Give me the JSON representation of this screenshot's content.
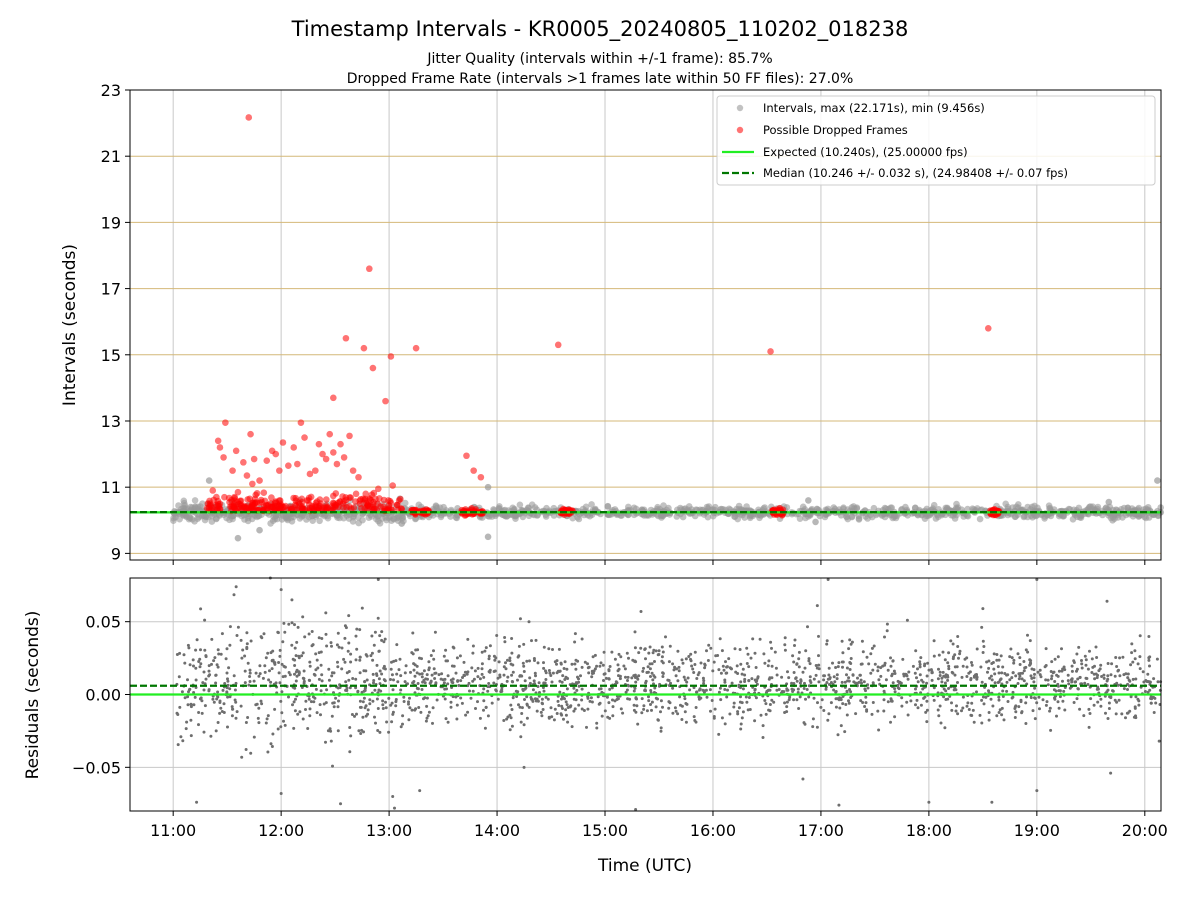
{
  "colors": {
    "intervals": "#999999",
    "dropped": "#ff0000",
    "expected": "#22ee22",
    "median": "#007700",
    "hgrid": "#d4b878",
    "vgrid": "#c8c8c8",
    "residual_points": "#6e6e6e"
  },
  "chart_data": [
    {
      "type": "scatter",
      "title": "Timestamp Intervals - KR0005_20240805_110202_018238",
      "subtitle_1": "Jitter Quality (intervals within +/-1 frame): 85.7%",
      "subtitle_2": "Dropped Frame Rate (intervals >1 frames late within 50 FF files): 27.0%",
      "ylabel": "Intervals (seconds)",
      "ylim": [
        8.8,
        23
      ],
      "yticks": [
        "9",
        "11",
        "13",
        "15",
        "17",
        "19",
        "21",
        "23"
      ],
      "ytick_values": [
        9,
        11,
        13,
        15,
        17,
        19,
        21,
        23
      ],
      "xlim": [
        "10:36",
        "20:09"
      ],
      "grid": "horizontal and vertical",
      "legend_position": "top-right",
      "legend": [
        "Intervals, max (22.171s), min (9.456s)",
        "Possible Dropped Frames",
        "Expected (10.240s), (25.00000 fps)",
        "Median (10.246 +/- 0.032 s), (24.98408 +/- 0.07 fps)"
      ],
      "expected": 10.24,
      "median": 10.246,
      "intervals_band": {
        "segments": [
          {
            "x_start": "11:00",
            "x_end": "13:10",
            "y_min": 9.8,
            "y_max": 10.6
          },
          {
            "x_start": "13:10",
            "x_end": "20:09",
            "y_min": 10.0,
            "y_max": 10.5
          }
        ]
      },
      "intervals_outliers": [
        {
          "x": "11:20",
          "y": 11.2
        },
        {
          "x": "11:36",
          "y": 9.46
        },
        {
          "x": "11:48",
          "y": 9.7
        },
        {
          "x": "13:06",
          "y": 10.65
        },
        {
          "x": "13:07",
          "y": 9.9
        },
        {
          "x": "13:55",
          "y": 11.0
        },
        {
          "x": "13:55",
          "y": 9.5
        },
        {
          "x": "16:53",
          "y": 10.6
        },
        {
          "x": "16:57",
          "y": 9.95
        },
        {
          "x": "19:40",
          "y": 10.55
        },
        {
          "x": "20:07",
          "y": 11.2
        }
      ],
      "dropped_clusters": [
        {
          "x_start": "13:12",
          "x_end": "13:22",
          "y": 10.25
        },
        {
          "x_start": "13:40",
          "x_end": "13:52",
          "y": 10.25
        },
        {
          "x_start": "14:35",
          "x_end": "14:42",
          "y": 10.25
        },
        {
          "x_start": "16:33",
          "x_end": "16:39",
          "y": 10.25
        },
        {
          "x_start": "18:34",
          "x_end": "18:39",
          "y": 10.25
        }
      ],
      "dropped_frames": [
        {
          "x": "11:42",
          "y": 22.17
        },
        {
          "x": "12:49",
          "y": 17.6
        },
        {
          "x": "12:36",
          "y": 15.5
        },
        {
          "x": "12:46",
          "y": 15.2
        },
        {
          "x": "13:01",
          "y": 14.95
        },
        {
          "x": "12:51",
          "y": 14.6
        },
        {
          "x": "12:58",
          "y": 13.6
        },
        {
          "x": "12:29",
          "y": 13.7
        },
        {
          "x": "13:15",
          "y": 15.2
        },
        {
          "x": "14:34",
          "y": 15.3
        },
        {
          "x": "16:32",
          "y": 15.1
        },
        {
          "x": "18:33",
          "y": 15.8
        },
        {
          "x": "13:43",
          "y": 11.95
        },
        {
          "x": "13:47",
          "y": 11.5
        },
        {
          "x": "13:51",
          "y": 11.3
        },
        {
          "x": "11:29",
          "y": 12.95
        },
        {
          "x": "11:25",
          "y": 12.4
        },
        {
          "x": "11:26",
          "y": 12.2
        },
        {
          "x": "11:28",
          "y": 11.9
        },
        {
          "x": "11:33",
          "y": 11.5
        },
        {
          "x": "11:35",
          "y": 12.1
        },
        {
          "x": "11:39",
          "y": 11.75
        },
        {
          "x": "11:41",
          "y": 11.35
        },
        {
          "x": "11:43",
          "y": 12.6
        },
        {
          "x": "11:45",
          "y": 11.85
        },
        {
          "x": "11:48",
          "y": 11.2
        },
        {
          "x": "11:52",
          "y": 11.8
        },
        {
          "x": "11:55",
          "y": 12.1
        },
        {
          "x": "11:57",
          "y": 12.0
        },
        {
          "x": "11:59",
          "y": 11.5
        },
        {
          "x": "12:01",
          "y": 12.35
        },
        {
          "x": "12:04",
          "y": 11.65
        },
        {
          "x": "12:07",
          "y": 12.2
        },
        {
          "x": "12:09",
          "y": 11.7
        },
        {
          "x": "12:11",
          "y": 12.95
        },
        {
          "x": "12:13",
          "y": 12.5
        },
        {
          "x": "12:16",
          "y": 11.4
        },
        {
          "x": "12:19",
          "y": 11.5
        },
        {
          "x": "12:21",
          "y": 12.3
        },
        {
          "x": "12:23",
          "y": 12.0
        },
        {
          "x": "12:25",
          "y": 11.85
        },
        {
          "x": "12:27",
          "y": 12.6
        },
        {
          "x": "12:29",
          "y": 12.05
        },
        {
          "x": "12:31",
          "y": 11.7
        },
        {
          "x": "12:33",
          "y": 12.3
        },
        {
          "x": "12:35",
          "y": 11.9
        },
        {
          "x": "12:38",
          "y": 12.55
        },
        {
          "x": "12:40",
          "y": 11.5
        },
        {
          "x": "12:43",
          "y": 11.3
        },
        {
          "x": "12:47",
          "y": 10.8
        },
        {
          "x": "12:54",
          "y": 10.95
        },
        {
          "x": "13:02",
          "y": 11.05
        },
        {
          "x": "11:22",
          "y": 10.9
        },
        {
          "x": "11:36",
          "y": 10.85
        },
        {
          "x": "11:44",
          "y": 11.1
        }
      ],
      "dropped_band": {
        "x_start": "11:18",
        "x_end": "13:08",
        "y_min": 10.05,
        "y_max": 11.3
      }
    },
    {
      "type": "scatter",
      "ylabel": "Residuals (seconds)",
      "xlabel": "Time (UTC)",
      "ylim": [
        -0.08,
        0.08
      ],
      "yticks": [
        "0.05",
        "0.00",
        "−0.05"
      ],
      "ytick_values": [
        0.05,
        0.0,
        -0.05
      ],
      "xlim": [
        "10:36",
        "20:09"
      ],
      "xticks": [
        "11:00",
        "12:00",
        "13:00",
        "14:00",
        "15:00",
        "16:00",
        "17:00",
        "18:00",
        "19:00",
        "20:00"
      ],
      "grid": "horizontal and vertical",
      "expected_residual": 0.0,
      "median_residual": 0.006,
      "residual_distribution": {
        "x_start": "11:02",
        "x_end": "20:09",
        "y_center": 0.008,
        "y_spread": 0.022
      },
      "residual_outliers": [
        {
          "x": "11:13",
          "y": -0.074
        },
        {
          "x": "11:35",
          "y": 0.074
        },
        {
          "x": "11:54",
          "y": 0.08
        },
        {
          "x": "12:00",
          "y": 0.072
        },
        {
          "x": "12:06",
          "y": 0.065
        },
        {
          "x": "12:00",
          "y": -0.068
        },
        {
          "x": "12:54",
          "y": 0.079
        },
        {
          "x": "13:03",
          "y": -0.078
        },
        {
          "x": "13:02",
          "y": -0.07
        },
        {
          "x": "13:17",
          "y": -0.066
        },
        {
          "x": "12:33",
          "y": -0.075
        },
        {
          "x": "14:13",
          "y": 0.052
        },
        {
          "x": "14:15",
          "y": -0.05
        },
        {
          "x": "15:20",
          "y": 0.057
        },
        {
          "x": "15:17",
          "y": -0.079
        },
        {
          "x": "16:58",
          "y": 0.061
        },
        {
          "x": "17:04",
          "y": 0.079
        },
        {
          "x": "16:50",
          "y": -0.058
        },
        {
          "x": "17:10",
          "y": -0.076
        },
        {
          "x": "18:00",
          "y": -0.074
        },
        {
          "x": "18:30",
          "y": 0.059
        },
        {
          "x": "18:35",
          "y": -0.074
        },
        {
          "x": "19:00",
          "y": 0.079
        },
        {
          "x": "19:00",
          "y": -0.066
        },
        {
          "x": "19:39",
          "y": 0.064
        },
        {
          "x": "19:41",
          "y": -0.054
        },
        {
          "x": "20:08",
          "y": -0.032
        }
      ]
    }
  ]
}
